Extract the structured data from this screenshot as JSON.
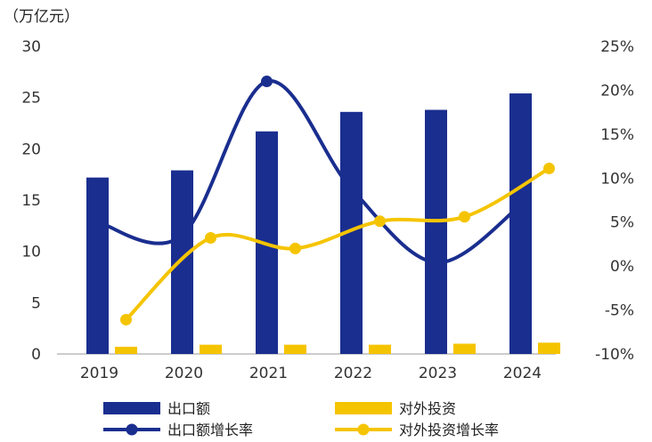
{
  "chart_data": {
    "type": "bar",
    "unit_label": "（万亿元）",
    "categories": [
      "2019",
      "2020",
      "2021",
      "2022",
      "2023",
      "2024"
    ],
    "y_left": {
      "ticks": [
        "0",
        "5",
        "10",
        "15",
        "20",
        "25",
        "30"
      ],
      "range": [
        0,
        30
      ]
    },
    "y_right": {
      "ticks": [
        "-10%",
        "-5%",
        "0%",
        "5%",
        "10%",
        "15%",
        "20%",
        "25%"
      ],
      "range": [
        -10,
        25
      ]
    },
    "grid": false,
    "legend_position": "bottom",
    "series": [
      {
        "name": "出口额",
        "kind": "bar",
        "axis": "left",
        "color": "#1a2e8f",
        "values": [
          17.2,
          17.9,
          21.7,
          23.6,
          23.8,
          25.4
        ]
      },
      {
        "name": "对外投资",
        "kind": "bar",
        "axis": "left",
        "color": "#f5c400",
        "values": [
          0.7,
          0.9,
          0.9,
          0.9,
          1.0,
          1.1
        ]
      },
      {
        "name": "出口额增长率",
        "kind": "line",
        "axis": "right",
        "color": "#1a2e8f",
        "values": [
          5.0,
          3.5,
          21.0,
          8.8,
          0.4,
          6.9
        ]
      },
      {
        "name": "对外投资增长率",
        "kind": "line",
        "axis": "right",
        "color": "#f5c400",
        "values": [
          -6.1,
          3.2,
          2.0,
          5.1,
          5.6,
          11.1
        ]
      }
    ]
  }
}
